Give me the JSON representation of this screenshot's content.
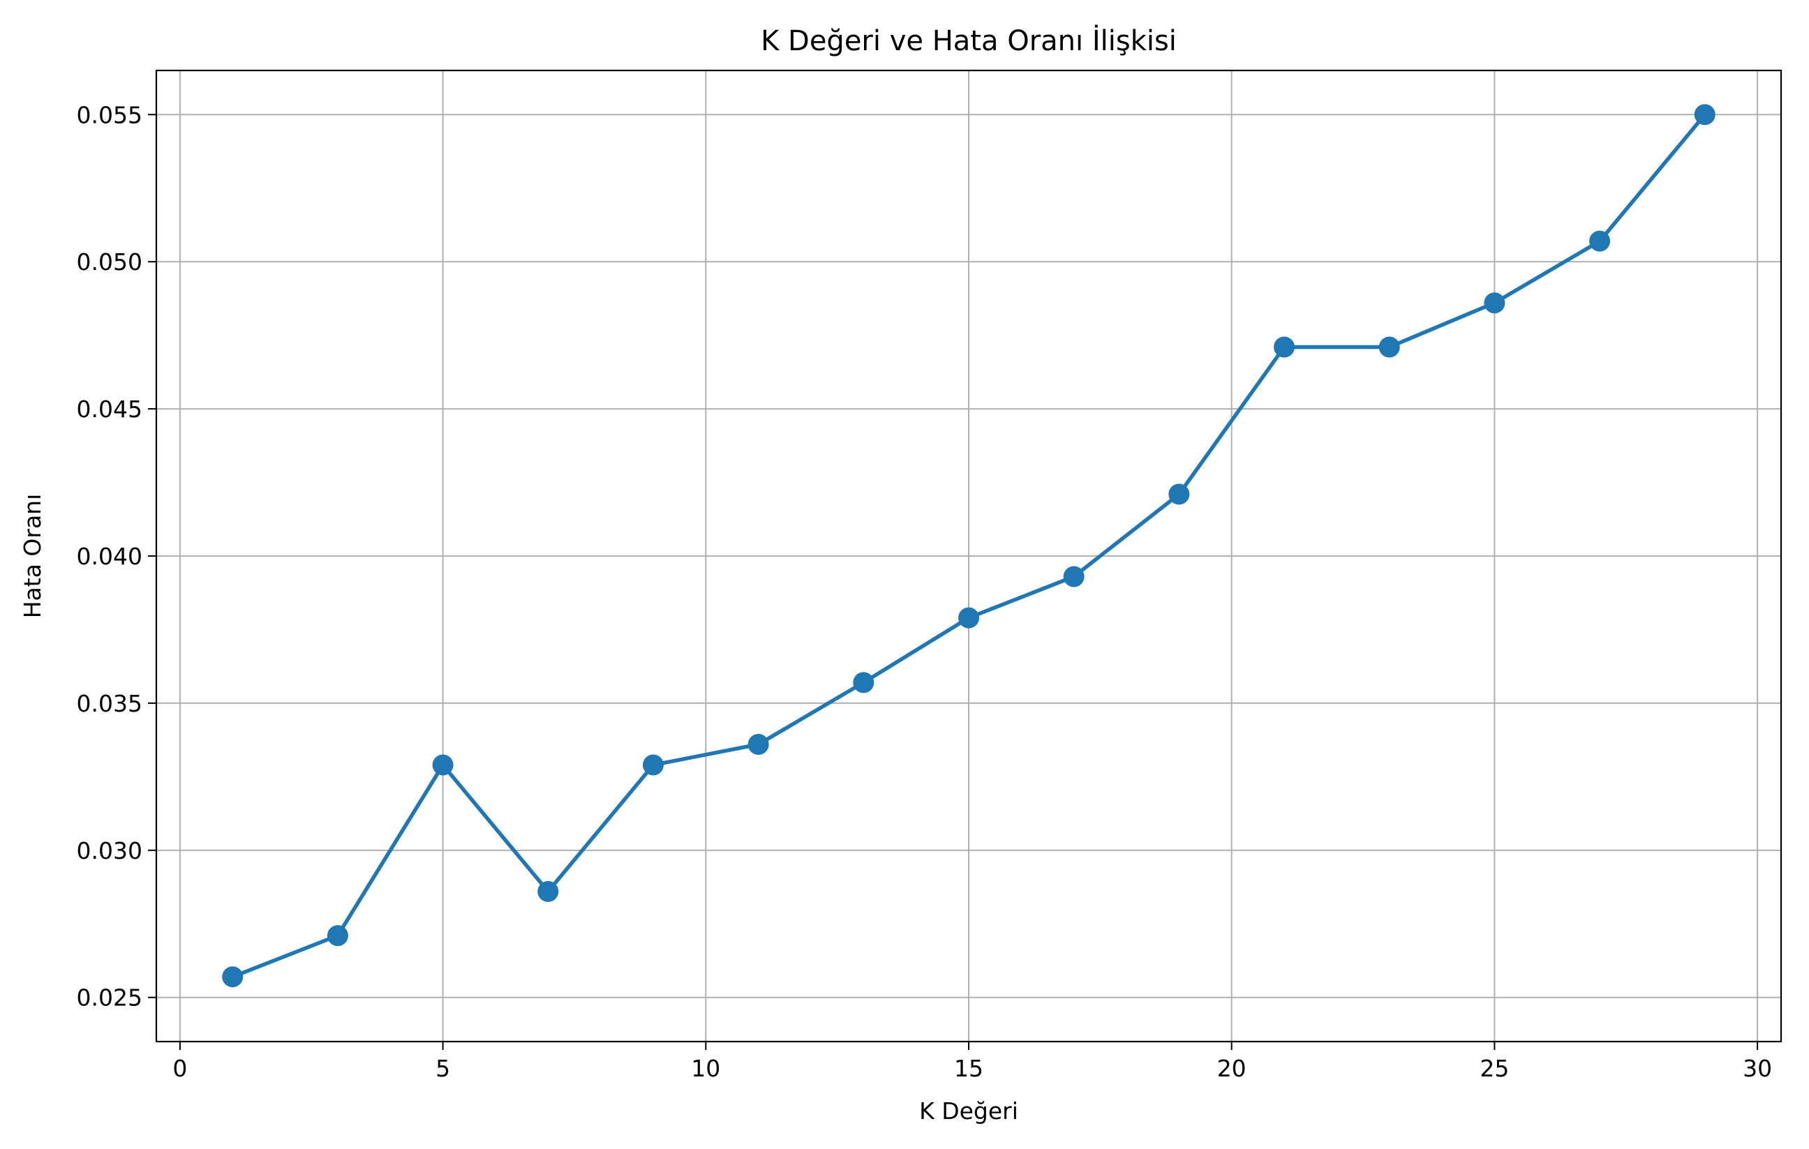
{
  "chart_data": {
    "type": "line",
    "title": "K Değeri ve Hata Oranı İlişkisi",
    "xlabel": "K Değeri",
    "ylabel": "Hata Oranı",
    "xlim": [
      -0.45,
      30.45
    ],
    "ylim": [
      0.0235,
      0.0565
    ],
    "xticks": [
      0,
      5,
      10,
      15,
      20,
      25,
      30
    ],
    "yticks": [
      0.025,
      0.03,
      0.035,
      0.04,
      0.045,
      0.05,
      0.055
    ],
    "ytick_labels": [
      "0.025",
      "0.030",
      "0.035",
      "0.040",
      "0.045",
      "0.050",
      "0.055"
    ],
    "grid": true,
    "series": [
      {
        "color": "#1f77b4",
        "marker": "circle",
        "x": [
          1,
          3,
          5,
          7,
          9,
          11,
          13,
          15,
          17,
          19,
          21,
          23,
          25,
          27,
          29
        ],
        "y": [
          0.0257,
          0.0271,
          0.0329,
          0.0286,
          0.0329,
          0.0336,
          0.0357,
          0.0379,
          0.0393,
          0.0421,
          0.0471,
          0.0471,
          0.0486,
          0.0507,
          0.055
        ]
      }
    ]
  }
}
